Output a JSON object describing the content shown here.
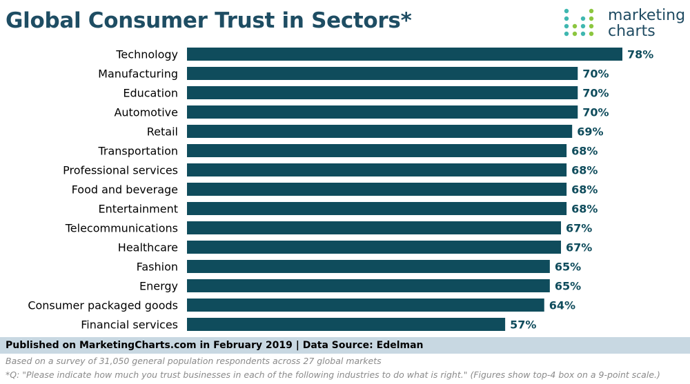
{
  "header": {
    "title": "Global Consumer Trust in Sectors*",
    "logo_line1": "marketing",
    "logo_line2": "charts"
  },
  "footer": {
    "published": "Published on MarketingCharts.com in February 2019 | Data Source: Edelman",
    "note1": "Based on a survey of 31,050 general population respondents across 27 global markets",
    "note2": "*Q: \"Please indicate how much you trust businesses in each of the following industries to do what is right.\" (Figures show top-4 box on a 9-point scale.)"
  },
  "colors": {
    "bar": "#0f4c5c",
    "label": "#000000",
    "value": "#0f4c5c",
    "logo_teal": "#3fb7b0",
    "logo_green": "#8cc63f",
    "logo_blue": "#1f4b62"
  },
  "chart_data": {
    "type": "bar",
    "orientation": "horizontal",
    "categories": [
      "Technology",
      "Manufacturing",
      "Education",
      "Automotive",
      "Retail",
      "Transportation",
      "Professional services",
      "Food and beverage",
      "Entertainment",
      "Telecommunications",
      "Healthcare",
      "Fashion",
      "Energy",
      "Consumer packaged goods",
      "Financial services"
    ],
    "values": [
      78,
      70,
      70,
      70,
      69,
      68,
      68,
      68,
      68,
      67,
      67,
      65,
      65,
      64,
      57
    ],
    "value_suffix": "%",
    "xlim": [
      0,
      80
    ],
    "grid": false,
    "legend": "none"
  }
}
